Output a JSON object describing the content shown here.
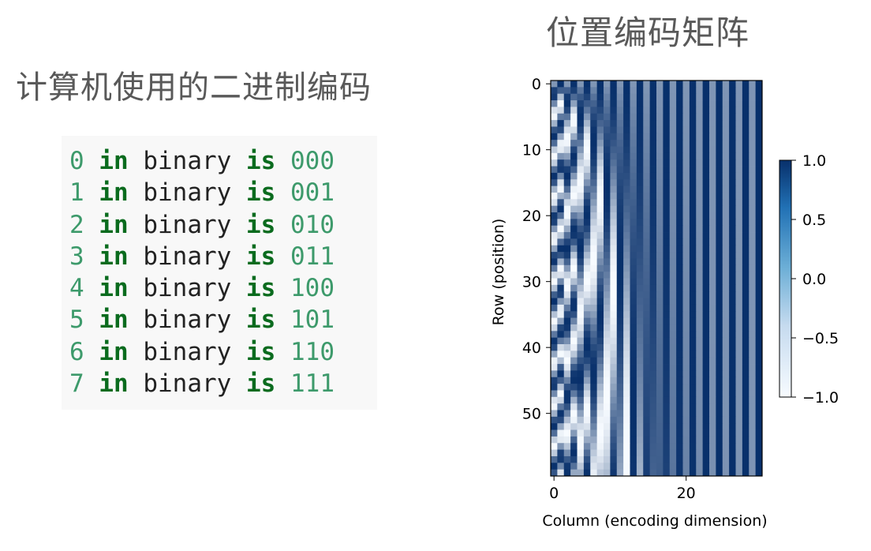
{
  "left_panel": {
    "title": "计算机使用的二进制编码",
    "code_lines": [
      {
        "num": "0",
        "kw1": "in",
        "word": "binary",
        "kw2": "is",
        "bits": "000"
      },
      {
        "num": "1",
        "kw1": "in",
        "word": "binary",
        "kw2": "is",
        "bits": "001"
      },
      {
        "num": "2",
        "kw1": "in",
        "word": "binary",
        "kw2": "is",
        "bits": "010"
      },
      {
        "num": "3",
        "kw1": "in",
        "word": "binary",
        "kw2": "is",
        "bits": "011"
      },
      {
        "num": "4",
        "kw1": "in",
        "word": "binary",
        "kw2": "is",
        "bits": "100"
      },
      {
        "num": "5",
        "kw1": "in",
        "word": "binary",
        "kw2": "is",
        "bits": "101"
      },
      {
        "num": "6",
        "kw1": "in",
        "word": "binary",
        "kw2": "is",
        "bits": "110"
      },
      {
        "num": "7",
        "kw1": "in",
        "word": "binary",
        "kw2": "is",
        "bits": "111"
      }
    ]
  },
  "chart_data": {
    "type": "heatmap",
    "title": "位置编码矩阵",
    "xlabel": "Column (encoding dimension)",
    "ylabel": "Row (position)",
    "rows": 60,
    "cols": 32,
    "xticks": [
      0,
      20
    ],
    "yticks": [
      0,
      10,
      20,
      30,
      40,
      50
    ],
    "colorbar": {
      "min": -1.0,
      "max": 1.0,
      "ticks": [
        "1.0",
        "0.5",
        "0.0",
        "−0.5",
        "−1.0"
      ],
      "colormap": "Blues",
      "low_color": "#f7fbff",
      "high_color": "#08306b"
    }
  }
}
